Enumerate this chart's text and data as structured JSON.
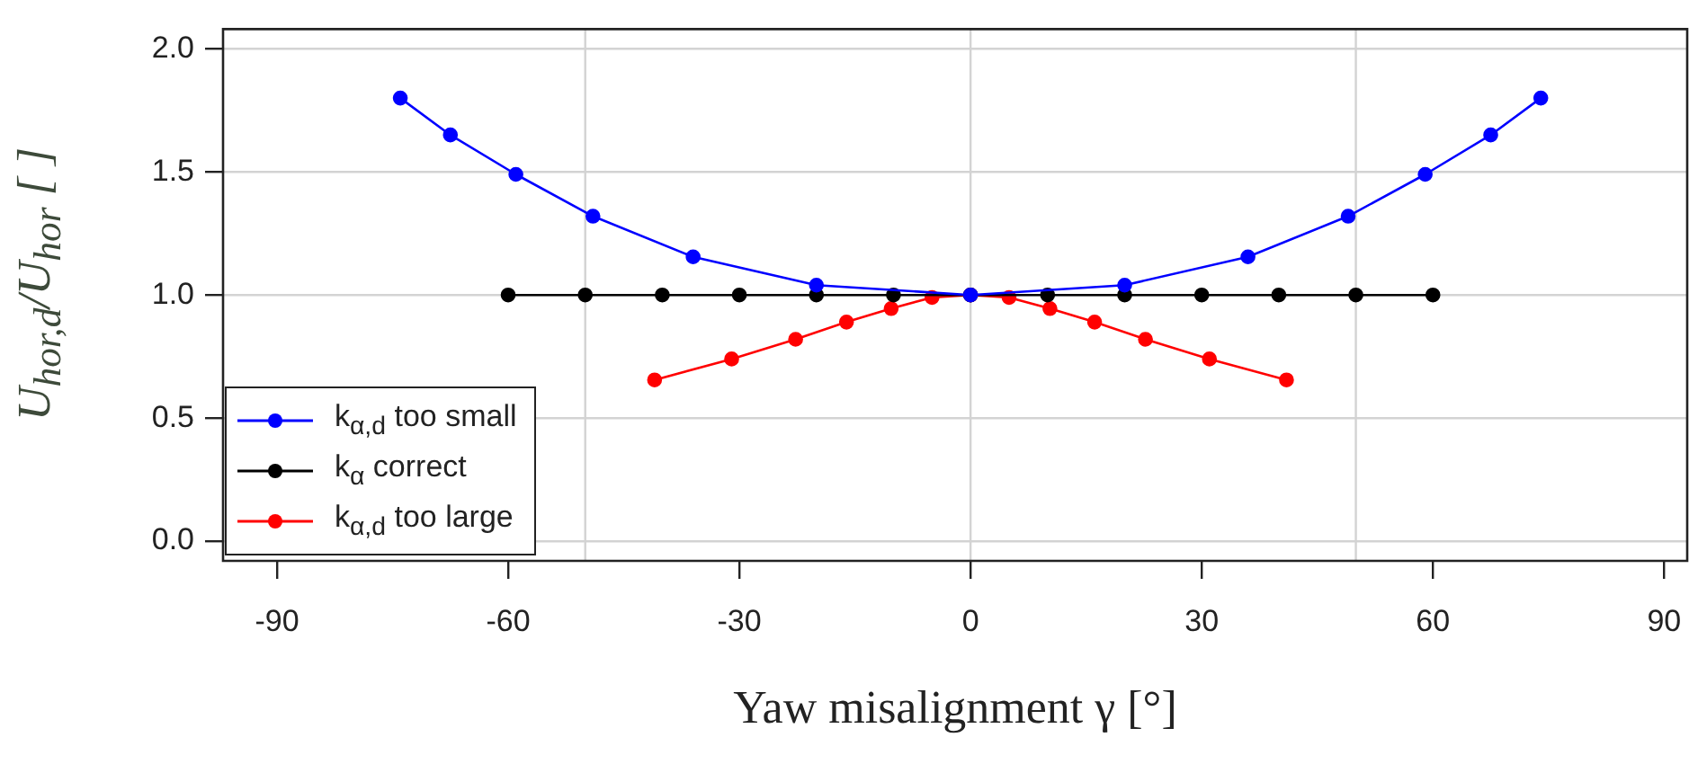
{
  "chart_data": {
    "type": "line",
    "xlabel": "Yaw misalignment γ [°]",
    "ylabel": "U$_{hor,d}$/U$_{hor}$ [ ]",
    "xlim": [
      -97,
      93
    ],
    "xticks": [
      -90,
      -60,
      -30,
      0,
      30,
      60,
      90
    ],
    "ylim": [
      -0.08,
      2.08
    ],
    "yticks": [
      {
        "value": 0,
        "label": "0.0"
      },
      {
        "value": 0.5,
        "label": "0.5"
      },
      {
        "value": 1,
        "label": "1.0"
      },
      {
        "value": 1.5,
        "label": "1.5"
      },
      {
        "value": 2,
        "label": "2.0"
      }
    ],
    "grid": "y",
    "legend": "bottom left",
    "marker": "circle",
    "line_style": "solid",
    "ref_lines": [
      {
        "axis": "x",
        "value": -50,
        "color": "#d3d3d3"
      },
      {
        "axis": "x",
        "value": 0,
        "color": "#d3d3d3"
      },
      {
        "axis": "x",
        "value": 50,
        "color": "#d3d3d3"
      }
    ],
    "series": [
      {
        "name": "k$_{α,d}$ too small",
        "color": "#0000ff",
        "x": [
          -74,
          -67.5,
          -59,
          -49,
          -36,
          -20,
          0,
          20,
          36,
          49,
          59,
          67.5,
          74
        ],
        "values": [
          1.8,
          1.65,
          1.49,
          1.32,
          1.155,
          1.04,
          1.0,
          1.04,
          1.155,
          1.32,
          1.49,
          1.65,
          1.8
        ]
      },
      {
        "name": "k$_{α}$ correct",
        "color": "#000000",
        "x": [
          -60,
          -50,
          -40,
          -30,
          -20,
          -10,
          0,
          10,
          20,
          30,
          40,
          50,
          60
        ],
        "values": [
          1,
          1,
          1,
          1,
          1,
          1,
          1,
          1,
          1,
          1,
          1,
          1,
          1
        ]
      },
      {
        "name": "k$_{α,d}$ too large",
        "color": "#ff0000",
        "x": [
          -41,
          -31,
          -22.7,
          -16.1,
          -10.3,
          -5,
          0,
          5,
          10.3,
          16.1,
          22.7,
          31,
          41
        ],
        "values": [
          0.655,
          0.74,
          0.82,
          0.89,
          0.945,
          0.99,
          1.0,
          0.99,
          0.945,
          0.89,
          0.82,
          0.74,
          0.655
        ]
      }
    ]
  }
}
